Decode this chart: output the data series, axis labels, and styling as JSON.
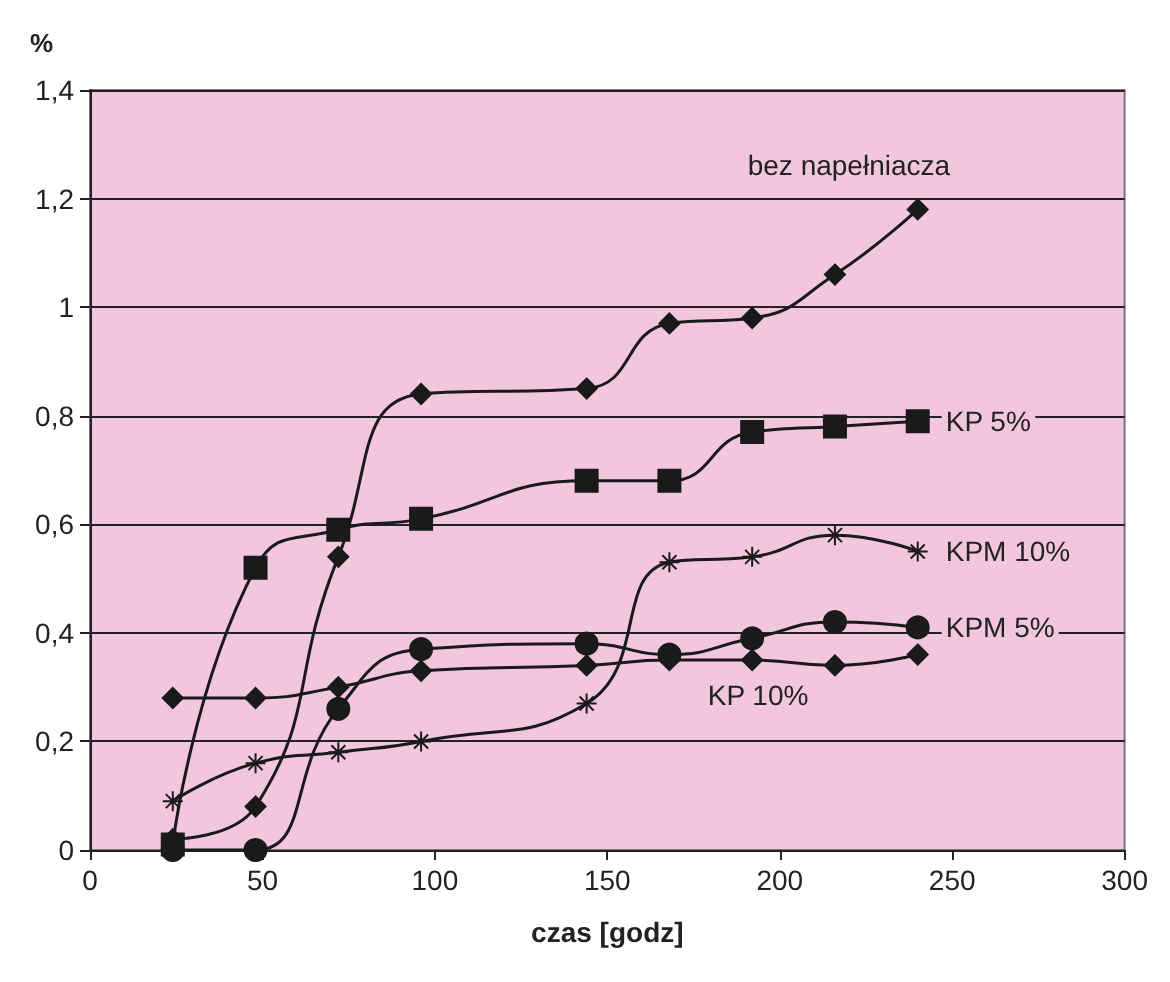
{
  "chart_data": {
    "type": "line",
    "xlabel": "czas [godz]",
    "ylabel": "%",
    "x": [
      24,
      48,
      72,
      96,
      144,
      168,
      192,
      216,
      240
    ],
    "series": [
      {
        "name": "bez napełniacza",
        "color": "#1a1a1a",
        "marker": "diamond",
        "values": [
          0.02,
          0.08,
          0.54,
          0.84,
          0.85,
          0.97,
          0.98,
          1.06,
          1.18
        ]
      },
      {
        "name": "KP 5%",
        "color": "#1a1a1a",
        "marker": "square",
        "values": [
          0.01,
          0.52,
          0.59,
          0.61,
          0.68,
          0.68,
          0.77,
          0.78,
          0.79
        ]
      },
      {
        "name": "KPM 10%",
        "color": "#1a1a1a",
        "marker": "cross",
        "values": [
          0.09,
          0.16,
          0.18,
          0.2,
          0.27,
          0.53,
          0.54,
          0.58,
          0.55
        ]
      },
      {
        "name": "KPM 5%",
        "color": "#1a1a1a",
        "marker": "circle",
        "values": [
          0.0,
          0.0,
          0.26,
          0.37,
          0.38,
          0.36,
          0.39,
          0.42,
          0.41
        ]
      },
      {
        "name": "KP 10%",
        "color": "#1a1a1a",
        "marker": "diamond",
        "values": [
          0.28,
          0.28,
          0.3,
          0.33,
          0.34,
          0.35,
          0.35,
          0.34,
          0.36
        ]
      }
    ],
    "xlim": [
      0,
      300
    ],
    "xticks": [
      0,
      50,
      100,
      150,
      200,
      250,
      300
    ],
    "ylim": [
      0,
      1.4
    ],
    "yticks": [
      0,
      {
        "value": 0.2,
        "label": "0,2"
      },
      {
        "value": 0.4,
        "label": "0,4"
      },
      {
        "value": 0.6,
        "label": "0,6"
      },
      {
        "value": 0.8,
        "label": "0,8"
      },
      1,
      {
        "value": 1.2,
        "label": "1,2"
      },
      {
        "value": 1.4,
        "label": "1,4"
      }
    ],
    "grid": "y",
    "legend": false,
    "line_style": "solid"
  }
}
